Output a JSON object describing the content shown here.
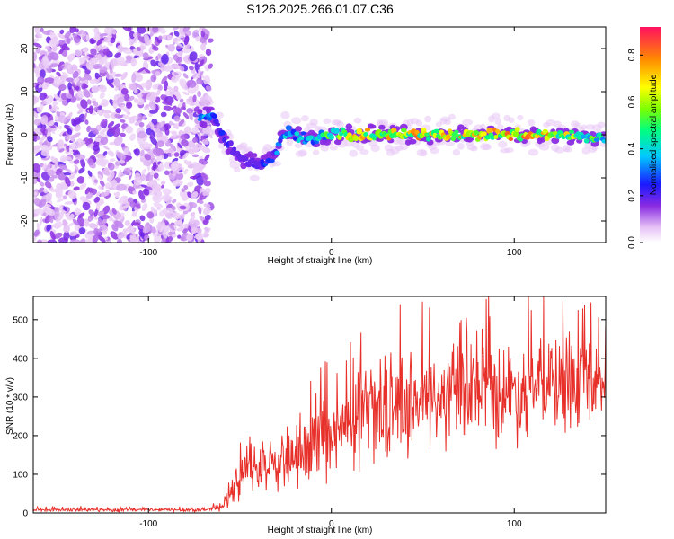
{
  "title": "S126.2025.266.01.07.C36",
  "chart_data": [
    {
      "type": "heatmap",
      "xlabel": "Height of straight line (km)",
      "ylabel": "Frequency (Hz)",
      "xlim": [
        -163,
        150
      ],
      "ylim": [
        -25,
        25
      ],
      "xticks": [
        -100,
        0,
        100
      ],
      "yticks": [
        -20,
        -10,
        0,
        10,
        20
      ],
      "colorbar": {
        "label": "Normalized spectral amplitude",
        "range": [
          0,
          0.92
        ],
        "ticks": [
          0.0,
          0.2,
          0.4,
          0.6,
          0.8
        ]
      },
      "noise_region_x_max": -70,
      "ridge": {
        "x": [
          -70,
          -65,
          -60,
          -55,
          -50,
          -45,
          -40,
          -35,
          -30,
          -25,
          -20,
          -10,
          0,
          20,
          40,
          60,
          80,
          100,
          120,
          150
        ],
        "freq": [
          4,
          5,
          0,
          -3,
          -5,
          -6,
          -7,
          -6,
          -4,
          1,
          0,
          -1,
          0,
          0,
          0,
          0,
          0,
          0,
          0,
          -1
        ],
        "amplitude": [
          0.45,
          0.4,
          0.3,
          0.25,
          0.2,
          0.2,
          0.25,
          0.3,
          0.35,
          0.4,
          0.4,
          0.5,
          0.6,
          0.8,
          0.8,
          0.85,
          0.75,
          0.85,
          0.8,
          0.5
        ]
      }
    },
    {
      "type": "line",
      "xlabel": "Height of straight line (km)",
      "ylabel": "SNR (10 * v/v)",
      "xlim": [
        -163,
        150
      ],
      "ylim": [
        0,
        560
      ],
      "xticks": [
        -100,
        0,
        100
      ],
      "yticks": [
        0,
        100,
        200,
        300,
        400,
        500
      ],
      "color": "#e8302a",
      "envelope": {
        "x": [
          -163,
          -70,
          -60,
          -55,
          -50,
          -45,
          -40,
          -30,
          -20,
          -10,
          -5,
          0,
          10,
          20,
          30,
          40,
          60,
          80,
          100,
          120,
          140,
          150
        ],
        "mean": [
          8,
          8,
          15,
          45,
          90,
          120,
          110,
          120,
          140,
          165,
          180,
          190,
          220,
          250,
          275,
          285,
          295,
          310,
          315,
          330,
          335,
          340
        ],
        "spread": [
          6,
          6,
          12,
          35,
          60,
          90,
          70,
          80,
          90,
          110,
          130,
          130,
          140,
          150,
          160,
          160,
          160,
          160,
          160,
          150,
          140,
          120
        ]
      }
    }
  ]
}
